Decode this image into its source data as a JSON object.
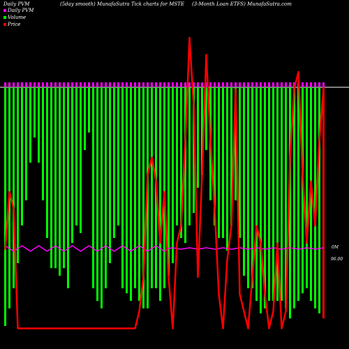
{
  "header": {
    "left": "Daily PVM",
    "mid1": "(5day smooth) MunafaSutra Tick charts for MSTE",
    "mid2": "(3-Month Loan ETFS) MunafaSutra.com"
  },
  "legend": {
    "items": [
      {
        "label": "Daily PVM",
        "color": "#ff00ff"
      },
      {
        "label": "Volume",
        "color": "#00ff00"
      },
      {
        "label": "Price",
        "color": "#ff0000"
      }
    ]
  },
  "chart_data": {
    "type": "bar",
    "title": "(5day smooth) MunafaSutra Tick charts for MSTE",
    "grid": false,
    "colors": {
      "volume": "#00ff00",
      "volume_dark": "#ff0000",
      "pvm": "#ff00ff",
      "price": "#ff0000",
      "axis": "#ffffff"
    },
    "series": [
      {
        "name": "Volume",
        "values": [
          0.95,
          0.88,
          0.8,
          0.7,
          0.55,
          0.45,
          0.3,
          0.2,
          0.3,
          0.45,
          0.6,
          0.72,
          0.72,
          0.75,
          0.72,
          0.8,
          0.62,
          0.55,
          0.58,
          0.25,
          0.18,
          0.8,
          0.85,
          0.88,
          0.8,
          0.7,
          0.6,
          0.55,
          0.8,
          0.82,
          0.85,
          0.8,
          0.85,
          0.88,
          0.88,
          0.8,
          0.8,
          0.85,
          0.8,
          0.75,
          0.7,
          0.55,
          0.6,
          0.62,
          0.55,
          0.5,
          0.4,
          0.35,
          0.25,
          0.45,
          0.55,
          0.6,
          0.6,
          0.65,
          0.55,
          0.45,
          0.6,
          0.75,
          0.8,
          0.8,
          0.85,
          0.9,
          0.88,
          0.85,
          0.85,
          0.85,
          0.85,
          0.88,
          0.92,
          0.88,
          0.85,
          0.82,
          0.8,
          0.85,
          0.88,
          0.9,
          0.92
        ]
      },
      {
        "name": "Daily PVM",
        "values": [
          1,
          1,
          1,
          1,
          1,
          1,
          1,
          1,
          1,
          1,
          1,
          1,
          1,
          1,
          1,
          1,
          1,
          1,
          1,
          1,
          1,
          1,
          1,
          1,
          1,
          1,
          1,
          1,
          1,
          1,
          1,
          1,
          1,
          1,
          1,
          1,
          1,
          1,
          1,
          1,
          1,
          1,
          1,
          1,
          1,
          1,
          1,
          1,
          1,
          1,
          1,
          1,
          1,
          1,
          1,
          1,
          1,
          1,
          1,
          1,
          1,
          1,
          1,
          1,
          1,
          1,
          1,
          1,
          1,
          1,
          1,
          1,
          1,
          1,
          1,
          1,
          1
        ]
      },
      {
        "name": "Price",
        "values": [
          0.28,
          0.45,
          0.4,
          0.05,
          0.05,
          0.05,
          0.05,
          0.05,
          0.05,
          0.05,
          0.05,
          0.05,
          0.05,
          0.05,
          0.05,
          0.05,
          0.05,
          0.05,
          0.05,
          0.05,
          0.05,
          0.05,
          0.05,
          0.05,
          0.05,
          0.05,
          0.05,
          0.05,
          0.05,
          0.05,
          0.05,
          0.05,
          0.1,
          0.2,
          0.5,
          0.55,
          0.48,
          0.3,
          0.45,
          0.2,
          0.05,
          0.3,
          0.35,
          0.6,
          0.9,
          0.7,
          0.2,
          0.5,
          0.85,
          0.6,
          0.4,
          0.15,
          0.05,
          0.25,
          0.35,
          0.75,
          0.15,
          0.1,
          0.05,
          0.2,
          0.35,
          0.3,
          0.15,
          0.05,
          0.1,
          0.3,
          0.05,
          0.1,
          0.55,
          0.75,
          0.8,
          0.5,
          0.3,
          0.48,
          0.35,
          0.6,
          0.75
        ]
      }
    ],
    "annotations": [
      {
        "text": "0M"
      },
      {
        "text": "96.00"
      }
    ]
  }
}
